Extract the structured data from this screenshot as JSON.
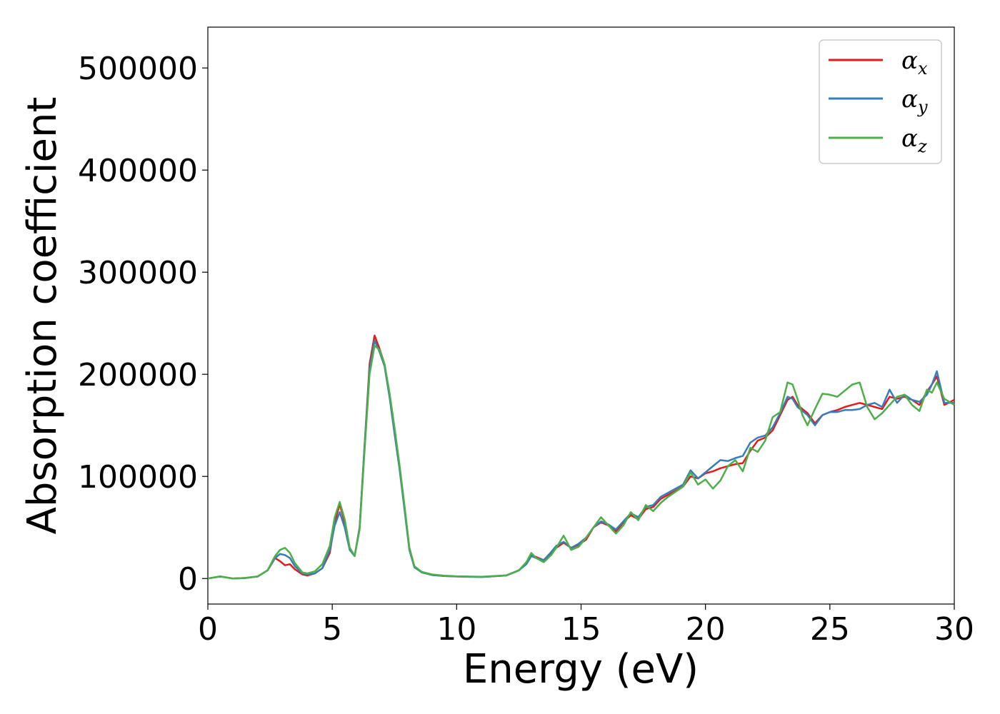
{
  "chart_data": {
    "type": "line",
    "xlabel": "Energy (eV)",
    "ylabel": "Absorption coefficient",
    "xlim": [
      0,
      30
    ],
    "ylim": [
      -25000,
      540000
    ],
    "xticks": [
      0,
      5,
      10,
      15,
      20,
      25,
      30
    ],
    "xtick_labels": [
      "0",
      "5",
      "10",
      "15",
      "20",
      "25",
      "30"
    ],
    "yticks": [
      0,
      100000,
      200000,
      300000,
      400000,
      500000
    ],
    "ytick_labels": [
      "0",
      "100000",
      "200000",
      "300000",
      "400000",
      "500000"
    ],
    "grid": false,
    "legend_position": "top-right",
    "series": [
      {
        "name": "x",
        "color": "#e41a1c",
        "x": [
          0,
          0.5,
          1,
          1.5,
          2,
          2.4,
          2.7,
          2.9,
          3.1,
          3.3,
          3.5,
          3.8,
          4.0,
          4.3,
          4.6,
          4.9,
          5.1,
          5.3,
          5.5,
          5.7,
          5.9,
          6.1,
          6.3,
          6.5,
          6.7,
          6.9,
          7.1,
          7.3,
          7.5,
          7.7,
          7.9,
          8.1,
          8.3,
          8.6,
          9,
          9.5,
          10,
          11,
          12,
          12.5,
          12.8,
          13.0,
          13.2,
          13.5,
          13.8,
          14.0,
          14.3,
          14.6,
          14.9,
          15.2,
          15.5,
          15.8,
          16.1,
          16.4,
          16.7,
          17.0,
          17.3,
          17.6,
          17.9,
          18.2,
          18.5,
          18.8,
          19.1,
          19.4,
          19.7,
          20.0,
          20.3,
          20.6,
          20.9,
          21.2,
          21.5,
          21.8,
          22.1,
          22.4,
          22.7,
          23.0,
          23.3,
          23.5,
          23.7,
          23.9,
          24.1,
          24.4,
          24.7,
          25.0,
          25.3,
          25.6,
          25.9,
          26.2,
          26.5,
          26.8,
          27.1,
          27.4,
          27.7,
          28.0,
          28.3,
          28.6,
          28.9,
          29.1,
          29.3,
          29.6,
          30
        ],
        "values": [
          0,
          2000,
          0,
          500,
          2000,
          8000,
          20000,
          17000,
          13000,
          14000,
          9000,
          4000,
          3000,
          5000,
          10000,
          25000,
          55000,
          73000,
          55000,
          30000,
          22000,
          50000,
          130000,
          210000,
          238000,
          225000,
          210000,
          180000,
          145000,
          110000,
          70000,
          30000,
          12000,
          6000,
          3500,
          2500,
          2000,
          1500,
          3000,
          8000,
          15000,
          23000,
          21000,
          18000,
          25000,
          30000,
          35000,
          30000,
          33000,
          38000,
          50000,
          55000,
          52000,
          46000,
          55000,
          62000,
          58000,
          68000,
          70000,
          78000,
          82000,
          86000,
          90000,
          100000,
          98000,
          103000,
          105000,
          108000,
          110000,
          112000,
          113000,
          125000,
          135000,
          138000,
          145000,
          160000,
          175000,
          178000,
          170000,
          166000,
          162000,
          152000,
          160000,
          163000,
          165000,
          168000,
          170000,
          172000,
          170000,
          168000,
          166000,
          178000,
          176000,
          178000,
          175000,
          170000,
          183000,
          190000,
          198000,
          170000,
          175000
        ]
      },
      {
        "name": "y",
        "color": "#377eb8",
        "x": [
          0,
          0.5,
          1,
          1.5,
          2,
          2.4,
          2.7,
          2.9,
          3.1,
          3.3,
          3.5,
          3.8,
          4.0,
          4.3,
          4.6,
          4.9,
          5.1,
          5.3,
          5.5,
          5.7,
          5.9,
          6.1,
          6.3,
          6.5,
          6.7,
          6.9,
          7.1,
          7.3,
          7.5,
          7.7,
          7.9,
          8.1,
          8.3,
          8.6,
          9,
          9.5,
          10,
          11,
          12,
          12.5,
          12.8,
          13.0,
          13.2,
          13.5,
          13.8,
          14.0,
          14.3,
          14.6,
          14.9,
          15.2,
          15.5,
          15.8,
          16.1,
          16.4,
          16.7,
          17.0,
          17.3,
          17.6,
          17.9,
          18.2,
          18.5,
          18.8,
          19.1,
          19.4,
          19.7,
          20.0,
          20.3,
          20.6,
          20.9,
          21.2,
          21.5,
          21.8,
          22.1,
          22.4,
          22.7,
          23.0,
          23.3,
          23.5,
          23.7,
          23.9,
          24.1,
          24.4,
          24.7,
          25.0,
          25.3,
          25.6,
          25.9,
          26.2,
          26.5,
          26.8,
          27.1,
          27.4,
          27.7,
          28.0,
          28.3,
          28.6,
          28.9,
          29.1,
          29.3,
          29.6,
          30
        ],
        "values": [
          0,
          2000,
          0,
          500,
          2000,
          8000,
          20000,
          24000,
          23000,
          20000,
          12000,
          5000,
          4000,
          5000,
          10000,
          28000,
          52000,
          65000,
          50000,
          28000,
          22000,
          50000,
          130000,
          205000,
          233000,
          222000,
          208000,
          178000,
          142000,
          108000,
          68000,
          28000,
          11000,
          6000,
          3500,
          2500,
          2000,
          1500,
          3000,
          8000,
          14000,
          22000,
          20000,
          18000,
          26000,
          32000,
          36000,
          30000,
          34000,
          40000,
          50000,
          56000,
          53000,
          48000,
          56000,
          64000,
          60000,
          70000,
          72000,
          80000,
          84000,
          88000,
          92000,
          106000,
          98000,
          104000,
          110000,
          116000,
          115000,
          118000,
          120000,
          133000,
          138000,
          140000,
          148000,
          162000,
          178000,
          176000,
          168000,
          164000,
          160000,
          150000,
          160000,
          163000,
          163000,
          165000,
          165000,
          166000,
          170000,
          172000,
          168000,
          185000,
          172000,
          180000,
          175000,
          173000,
          180000,
          190000,
          203000,
          172000,
          172000
        ]
      },
      {
        "name": "z",
        "color": "#4daf4a",
        "x": [
          0,
          0.5,
          1,
          1.5,
          2,
          2.4,
          2.7,
          2.9,
          3.1,
          3.3,
          3.5,
          3.8,
          4.0,
          4.3,
          4.6,
          4.9,
          5.1,
          5.3,
          5.5,
          5.7,
          5.9,
          6.1,
          6.3,
          6.5,
          6.7,
          6.9,
          7.1,
          7.3,
          7.5,
          7.7,
          7.9,
          8.1,
          8.3,
          8.6,
          9,
          9.5,
          10,
          11,
          12,
          12.5,
          12.8,
          13.0,
          13.2,
          13.5,
          13.8,
          14.0,
          14.3,
          14.6,
          14.9,
          15.2,
          15.5,
          15.8,
          16.1,
          16.4,
          16.7,
          17.0,
          17.3,
          17.6,
          17.9,
          18.2,
          18.5,
          18.8,
          19.1,
          19.4,
          19.7,
          20.0,
          20.3,
          20.6,
          20.9,
          21.2,
          21.5,
          21.8,
          22.1,
          22.4,
          22.7,
          23.0,
          23.3,
          23.5,
          23.7,
          23.9,
          24.1,
          24.4,
          24.7,
          25.0,
          25.3,
          25.6,
          25.9,
          26.2,
          26.5,
          26.8,
          27.1,
          27.4,
          27.7,
          28.0,
          28.3,
          28.6,
          28.9,
          29.1,
          29.3,
          29.6,
          30
        ],
        "values": [
          0,
          2000,
          0,
          500,
          2000,
          8000,
          22000,
          28000,
          30000,
          25000,
          15000,
          6000,
          5000,
          7000,
          14000,
          32000,
          60000,
          75000,
          58000,
          30000,
          22000,
          48000,
          125000,
          200000,
          228000,
          224000,
          210000,
          182000,
          148000,
          112000,
          72000,
          30000,
          12000,
          6500,
          4000,
          2800,
          2200,
          1800,
          3200,
          8000,
          16000,
          25000,
          20000,
          16000,
          23000,
          30000,
          42000,
          28000,
          31000,
          40000,
          50000,
          60000,
          52000,
          44000,
          52000,
          65000,
          57000,
          72000,
          66000,
          74000,
          80000,
          85000,
          90000,
          104000,
          92000,
          97000,
          88000,
          96000,
          110000,
          116000,
          105000,
          128000,
          124000,
          135000,
          158000,
          163000,
          192000,
          190000,
          176000,
          160000,
          150000,
          166000,
          181000,
          180000,
          178000,
          184000,
          190000,
          192000,
          168000,
          156000,
          162000,
          170000,
          178000,
          180000,
          170000,
          164000,
          185000,
          182000,
          192000,
          176000,
          170000
        ]
      }
    ]
  },
  "legend": {
    "symbol": "α",
    "entries": [
      {
        "sub": "x",
        "color": "#e41a1c"
      },
      {
        "sub": "y",
        "color": "#377eb8"
      },
      {
        "sub": "z",
        "color": "#4daf4a"
      }
    ]
  }
}
